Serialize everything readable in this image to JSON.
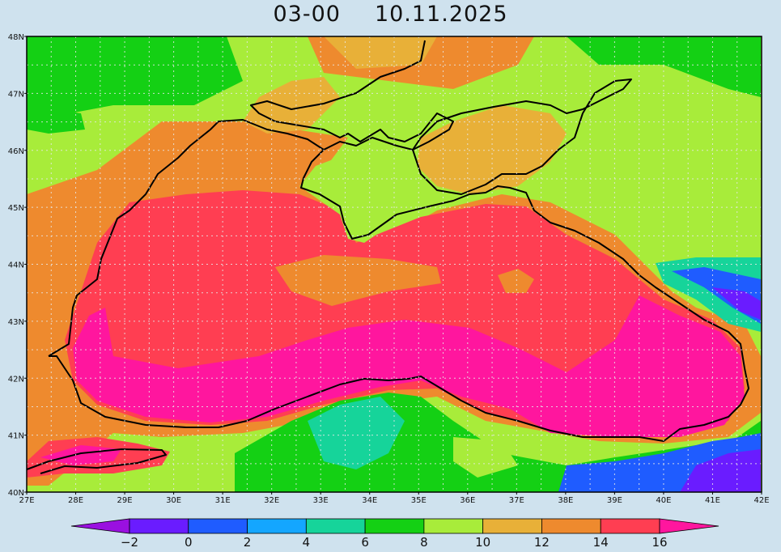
{
  "title": {
    "time": "03-00",
    "date": "10.11.2025"
  },
  "map": {
    "lat_labels": [
      "48N",
      "47N",
      "46N",
      "45N",
      "44N",
      "43N",
      "42N",
      "41N",
      "40N"
    ],
    "lon_labels": [
      "27E",
      "28E",
      "29E",
      "30E",
      "31E",
      "32E",
      "33E",
      "34E",
      "35E",
      "36E",
      "37E",
      "38E",
      "39E",
      "40E",
      "41E",
      "42E"
    ],
    "lat_range": [
      40,
      48
    ],
    "lon_range": [
      27,
      42
    ],
    "grid": true,
    "grid_style": "dotted"
  },
  "colorbar": {
    "labels": [
      "-2",
      "0",
      "2",
      "4",
      "6",
      "8",
      "10",
      "12",
      "14",
      "16"
    ],
    "colors": [
      "#9a10e0",
      "#6a1cff",
      "#1f5cff",
      "#14a6ff",
      "#16d49a",
      "#14d014",
      "#a8ec3a",
      "#e8b038",
      "#ee8a2e",
      "#ff3e52",
      "#ff169e"
    ]
  }
}
